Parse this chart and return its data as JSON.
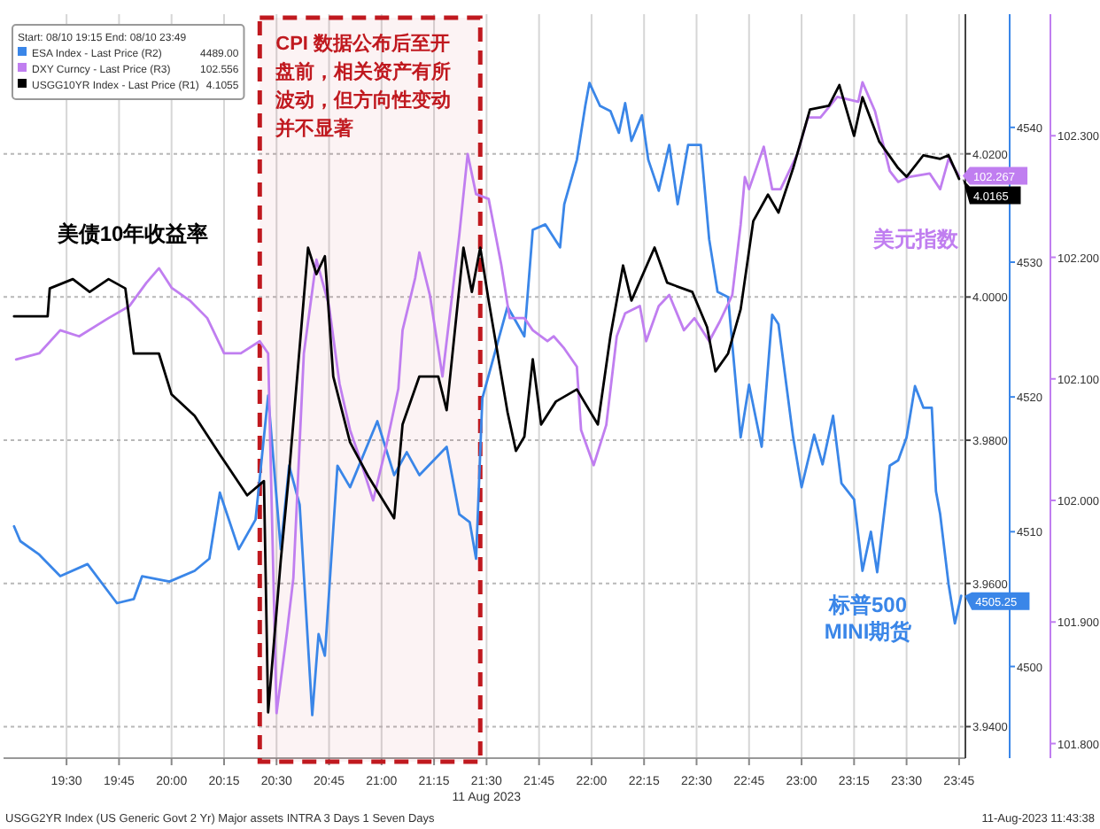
{
  "chart_data": {
    "type": "line",
    "xlim": [
      19.2,
      23.78
    ],
    "xticks": [
      {
        "value": 19.5,
        "label": "19:30"
      },
      {
        "value": 19.75,
        "label": "19:45"
      },
      {
        "value": 20,
        "label": "20:00"
      },
      {
        "value": 20.25,
        "label": "20:15"
      },
      {
        "value": 20.5,
        "label": "20:30"
      },
      {
        "value": 20.75,
        "label": "20:45"
      },
      {
        "value": 21,
        "label": "21:00"
      },
      {
        "value": 21.25,
        "label": "21:15"
      },
      {
        "value": 21.5,
        "label": "21:30\n11 Aug 2023"
      },
      {
        "value": 21.75,
        "label": "21:45"
      },
      {
        "value": 22,
        "label": "22:00"
      },
      {
        "value": 22.25,
        "label": "22:15"
      },
      {
        "value": 22.5,
        "label": "22:30"
      },
      {
        "value": 22.75,
        "label": "22:45"
      },
      {
        "value": 23,
        "label": "23:00"
      },
      {
        "value": 23.25,
        "label": "23:15"
      },
      {
        "value": 23.5,
        "label": "23:30"
      },
      {
        "value": 23.75,
        "label": "23:45"
      }
    ],
    "ylim": [
      3.9356,
      4.0395
    ],
    "yticks": [
      {
        "value": 3.94,
        "label": "3.9400"
      },
      {
        "value": 3.96,
        "label": "3.9600"
      },
      {
        "value": 3.98,
        "label": "3.9800"
      },
      {
        "value": 4.0,
        "label": "4.0000"
      },
      {
        "value": 4.02,
        "label": "4.0200"
      }
    ],
    "y2lim": [
      4493.2,
      4548.4
    ],
    "y2ticks": [
      4500,
      4510,
      4520,
      4530,
      4540
    ],
    "y3lim": [
      101.788,
      102.4
    ],
    "y3ticks": [
      {
        "value": 101.8,
        "label": "101.800"
      },
      {
        "value": 101.9,
        "label": "101.900"
      },
      {
        "value": 102.0,
        "label": "102.000"
      },
      {
        "value": 102.1,
        "label": "102.100"
      },
      {
        "value": 102.2,
        "label": "102.200"
      },
      {
        "value": 102.3,
        "label": "102.300"
      }
    ],
    "grid": true,
    "legend": "top left",
    "legend_title": "Start: 08/10 19:15 End: 08/10 23:49",
    "series": [
      {
        "name": "ESA Index - Last Price (R2) 4489.00",
        "color": "#3a86e8",
        "axis": "y2",
        "x": [
          19.25,
          19.28,
          19.37,
          19.47,
          19.6,
          19.74,
          19.82,
          19.86,
          19.99,
          20.11,
          20.18,
          20.23,
          20.32,
          20.4,
          20.46,
          20.52,
          20.56,
          20.61,
          20.67,
          20.7,
          20.73,
          20.79,
          20.85,
          20.98,
          21.06,
          21.12,
          21.18,
          21.31,
          21.37,
          21.42,
          21.45,
          21.48,
          21.6,
          21.68,
          21.72,
          21.78,
          21.85,
          21.87,
          21.93,
          21.97,
          21.99,
          22.04,
          22.09,
          22.13,
          22.16,
          22.19,
          22.24,
          22.27,
          22.32,
          22.37,
          22.41,
          22.46,
          22.52,
          22.56,
          22.6,
          22.65,
          22.71,
          22.75,
          22.81,
          22.86,
          22.89,
          22.96,
          23.0,
          23.06,
          23.1,
          23.15,
          23.19,
          23.25,
          23.29,
          23.33,
          23.36,
          23.42,
          23.46,
          23.5,
          23.54,
          23.58,
          23.62,
          23.64,
          23.66,
          23.7,
          23.73,
          23.76
        ],
        "values": [
          4510.4,
          4509.3,
          4508.3,
          4506.7,
          4507.6,
          4504.7,
          4505.0,
          4506.7,
          4506.3,
          4507.1,
          4508.0,
          4512.9,
          4508.7,
          4510.9,
          4520.1,
          4508.7,
          4514.9,
          4512.0,
          4496.4,
          4502.4,
          4500.8,
          4514.9,
          4513.3,
          4518.2,
          4514.2,
          4515.9,
          4514.2,
          4516.3,
          4511.3,
          4510.7,
          4508.0,
          4519.9,
          4526.7,
          4524.5,
          4532.4,
          4532.8,
          4531.1,
          4534.3,
          4537.6,
          4541.6,
          4543.3,
          4541.6,
          4541.2,
          4539.6,
          4541.8,
          4539.0,
          4540.9,
          4537.6,
          4535.3,
          4538.7,
          4534.3,
          4538.7,
          4538.7,
          4531.7,
          4527.8,
          4527.4,
          4517.0,
          4520.9,
          4516.3,
          4526.1,
          4525.4,
          4517.0,
          4513.3,
          4517.2,
          4515.0,
          4518.6,
          4513.6,
          4512.4,
          4507.1,
          4510.0,
          4507.0,
          4514.9,
          4515.3,
          4517.0,
          4520.8,
          4519.2,
          4519.2,
          4513.0,
          4511.3,
          4506.1,
          4503.2,
          4505.25
        ],
        "value_labels": [
          null,
          null,
          null,
          null,
          null,
          null,
          null,
          null,
          null,
          null,
          null,
          null,
          null,
          null,
          null,
          null,
          null,
          null,
          null,
          null,
          null,
          null,
          null,
          null,
          null,
          null,
          null,
          null,
          null,
          null,
          null,
          null,
          null,
          null,
          null,
          null,
          null,
          null,
          null,
          null,
          null,
          null,
          null,
          null,
          null,
          null,
          null,
          null,
          null,
          null,
          null,
          null,
          null,
          null,
          null,
          null,
          null,
          null,
          null,
          null,
          null,
          null,
          null,
          null,
          null,
          null,
          null,
          null,
          null,
          null,
          null,
          null,
          null,
          null,
          null,
          null,
          null,
          null,
          null,
          null,
          null,
          "4505.25"
        ]
      },
      {
        "name": "DXY Curncy - Last Price (R3) 102.556",
        "color": "#c07ef0",
        "axis": "y3",
        "x": [
          19.26,
          19.37,
          19.47,
          19.56,
          19.7,
          19.8,
          19.88,
          19.94,
          20.0,
          20.09,
          20.17,
          20.25,
          20.33,
          20.42,
          20.46,
          20.5,
          20.55,
          20.58,
          20.63,
          20.69,
          20.75,
          20.8,
          20.85,
          20.89,
          20.96,
          21.02,
          21.08,
          21.1,
          21.16,
          21.18,
          21.23,
          21.29,
          21.37,
          21.41,
          21.45,
          21.51,
          21.57,
          21.61,
          21.68,
          21.72,
          21.79,
          21.82,
          21.87,
          21.93,
          21.95,
          22.01,
          22.07,
          22.12,
          22.16,
          22.23,
          22.26,
          22.32,
          22.37,
          22.44,
          22.49,
          22.56,
          22.61,
          22.67,
          22.71,
          22.73,
          22.75,
          22.82,
          22.86,
          22.9,
          22.98,
          23.03,
          23.09,
          23.17,
          23.27,
          23.29,
          23.35,
          23.42,
          23.46,
          23.51,
          23.61,
          23.66,
          23.7,
          23.75
        ],
        "values": [
          102.116,
          102.121,
          102.14,
          102.135,
          102.15,
          102.16,
          102.179,
          102.191,
          102.175,
          102.164,
          102.15,
          102.121,
          102.121,
          102.131,
          102.121,
          101.825,
          101.892,
          101.936,
          102.121,
          102.198,
          102.16,
          102.096,
          102.058,
          102.038,
          102.0,
          102.043,
          102.092,
          102.14,
          102.183,
          102.204,
          102.169,
          102.102,
          102.218,
          102.285,
          102.252,
          102.248,
          102.194,
          102.15,
          102.15,
          102.14,
          102.131,
          102.135,
          102.125,
          102.11,
          102.058,
          102.029,
          102.062,
          102.135,
          102.154,
          102.16,
          102.131,
          102.16,
          102.169,
          102.14,
          102.15,
          102.131,
          102.147,
          102.169,
          102.227,
          102.266,
          102.256,
          102.291,
          102.256,
          102.256,
          102.285,
          102.315,
          102.315,
          102.332,
          102.328,
          102.344,
          102.32,
          102.271,
          102.262,
          102.266,
          102.269,
          102.256,
          102.281,
          102.267
        ],
        "value_labels": [
          null,
          null,
          null,
          null,
          null,
          null,
          null,
          null,
          null,
          null,
          null,
          null,
          null,
          null,
          null,
          null,
          null,
          null,
          null,
          null,
          null,
          null,
          null,
          null,
          null,
          null,
          null,
          null,
          null,
          null,
          null,
          null,
          null,
          null,
          null,
          null,
          null,
          null,
          null,
          null,
          null,
          null,
          null,
          null,
          null,
          null,
          null,
          null,
          null,
          null,
          null,
          null,
          null,
          null,
          null,
          null,
          null,
          null,
          null,
          null,
          null,
          null,
          null,
          null,
          null,
          null,
          null,
          null,
          null,
          null,
          null,
          null,
          null,
          null,
          null,
          null,
          null,
          "102.267"
        ]
      },
      {
        "name": "USGG10YR Index - Last Price (R1) 4.1055",
        "color": "#000000",
        "axis": "y",
        "x": [
          19.25,
          19.41,
          19.42,
          19.53,
          19.61,
          19.7,
          19.78,
          19.82,
          19.94,
          20.0,
          20.11,
          20.23,
          20.36,
          20.44,
          20.46,
          20.52,
          20.56,
          20.65,
          20.69,
          20.73,
          20.77,
          20.85,
          20.94,
          21.06,
          21.1,
          21.18,
          21.27,
          21.31,
          21.39,
          21.43,
          21.47,
          21.51,
          21.6,
          21.64,
          21.68,
          21.72,
          21.76,
          21.83,
          21.93,
          22.03,
          22.09,
          22.15,
          22.19,
          22.3,
          22.36,
          22.48,
          22.55,
          22.59,
          22.65,
          22.71,
          22.77,
          22.84,
          22.89,
          22.96,
          23.04,
          23.13,
          23.18,
          23.25,
          23.29,
          23.37,
          23.46,
          23.5,
          23.58,
          23.66,
          23.7,
          23.75
        ],
        "values": [
          3.9973,
          3.9973,
          4.0012,
          4.0025,
          4.0007,
          4.0025,
          4.0012,
          3.9921,
          3.9921,
          3.9864,
          3.9834,
          3.978,
          3.9723,
          3.9743,
          3.942,
          3.9632,
          3.9755,
          4.0069,
          4.0032,
          4.0057,
          3.9889,
          3.9797,
          3.9748,
          3.9691,
          3.9822,
          3.9889,
          3.9889,
          3.9842,
          4.0069,
          4.0007,
          4.0069,
          3.9995,
          3.9839,
          3.9785,
          3.9805,
          3.9913,
          3.9822,
          3.9854,
          3.9871,
          3.9822,
          3.9946,
          4.0044,
          3.9995,
          4.0069,
          4.002,
          4.0007,
          3.9958,
          3.9896,
          3.9921,
          3.9983,
          4.0106,
          4.0143,
          4.0118,
          4.018,
          4.0262,
          4.0267,
          4.0296,
          4.0225,
          4.0279,
          4.0217,
          4.018,
          4.0168,
          4.0198,
          4.0193,
          4.0198,
          4.0165
        ],
        "value_labels": [
          null,
          null,
          null,
          null,
          null,
          null,
          null,
          null,
          null,
          null,
          null,
          null,
          null,
          null,
          null,
          null,
          null,
          null,
          null,
          null,
          null,
          null,
          null,
          null,
          null,
          null,
          null,
          null,
          null,
          null,
          null,
          null,
          null,
          null,
          null,
          null,
          null,
          null,
          null,
          null,
          null,
          null,
          null,
          null,
          null,
          null,
          null,
          null,
          null,
          null,
          null,
          null,
          null,
          null,
          null,
          null,
          null,
          null,
          null,
          null,
          null,
          null,
          null,
          null,
          null,
          "4.0165"
        ]
      }
    ],
    "bands": [
      {
        "axis": "x",
        "from": 20.42,
        "to": 21.47,
        "label": "CPI 数据公布后至开盘前，相关资产有所波动，但方向性变动并不显著",
        "color": "#c0191f"
      }
    ],
    "annotations": [
      "标普500\nMINI期货",
      "美元指数",
      "美债10年收益率",
      "USGG2YR Index (US Generic Govt 2 Yr) Major assets INTRA 3 Days 1 Seven Days",
      "11-Aug-2023 11:43:38"
    ]
  }
}
